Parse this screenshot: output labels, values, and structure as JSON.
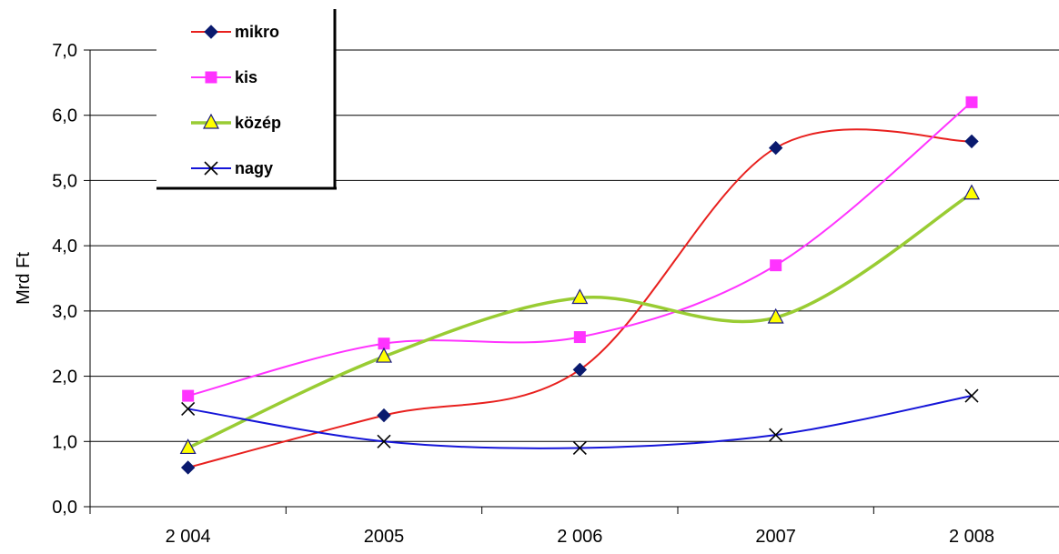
{
  "chart_data": {
    "type": "line",
    "categories": [
      "2 004",
      "2005",
      "2 006",
      "2007",
      "2 008"
    ],
    "ylabel": "Mrd Ft",
    "xlabel": "",
    "ylim": [
      0,
      7
    ],
    "yticks": [
      "0,0",
      "1,0",
      "2,0",
      "3,0",
      "4,0",
      "5,0",
      "6,0",
      "7,0"
    ],
    "grid": true,
    "smoothed": true,
    "legend_position": "top-left",
    "series": [
      {
        "name": "mikro",
        "values": [
          0.6,
          1.4,
          2.1,
          5.5,
          5.6
        ],
        "color": "#e8201e",
        "marker": "diamond",
        "marker_color": "#0a1a6e"
      },
      {
        "name": "kis",
        "values": [
          1.7,
          2.5,
          2.6,
          3.7,
          6.2
        ],
        "color": "#ff33ff",
        "marker": "square",
        "marker_color": "#ff33ff"
      },
      {
        "name": "közép",
        "values": [
          0.9,
          2.3,
          3.2,
          2.9,
          4.8
        ],
        "color": "#99cc33",
        "marker": "triangle",
        "marker_color": "#ffff00"
      },
      {
        "name": "nagy",
        "values": [
          1.5,
          1.0,
          0.9,
          1.1,
          1.7
        ],
        "color": "#1515d8",
        "marker": "x",
        "marker_color": "#000000"
      }
    ]
  }
}
